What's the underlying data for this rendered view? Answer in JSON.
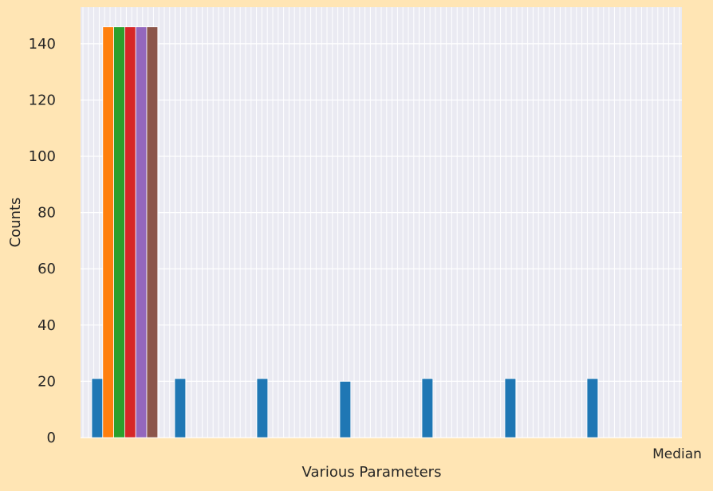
{
  "chart_data": {
    "type": "bar",
    "title": "",
    "xlabel": "Various Parameters",
    "ylabel": "Counts",
    "ylim": [
      0,
      153
    ],
    "yticks": [
      0,
      20,
      40,
      60,
      80,
      100,
      120,
      140
    ],
    "grid": true,
    "legend": "none",
    "bar_groups": [
      {
        "values": [
          21,
          146,
          146,
          146,
          146,
          146
        ]
      },
      {
        "values": [
          21
        ]
      },
      {
        "values": [
          21
        ]
      },
      {
        "values": [
          20
        ]
      },
      {
        "values": [
          21
        ]
      },
      {
        "values": [
          21
        ]
      },
      {
        "values": [
          21
        ]
      }
    ],
    "colors": {
      "background": "#ffe5b4",
      "plot_area": "#eaeaf2",
      "grid": "#ffffff",
      "series": [
        "#1f77b4",
        "#ff7f0e",
        "#2ca02c",
        "#d62728",
        "#9467bd",
        "#8c564b"
      ]
    },
    "end_tick_label": "Median"
  }
}
